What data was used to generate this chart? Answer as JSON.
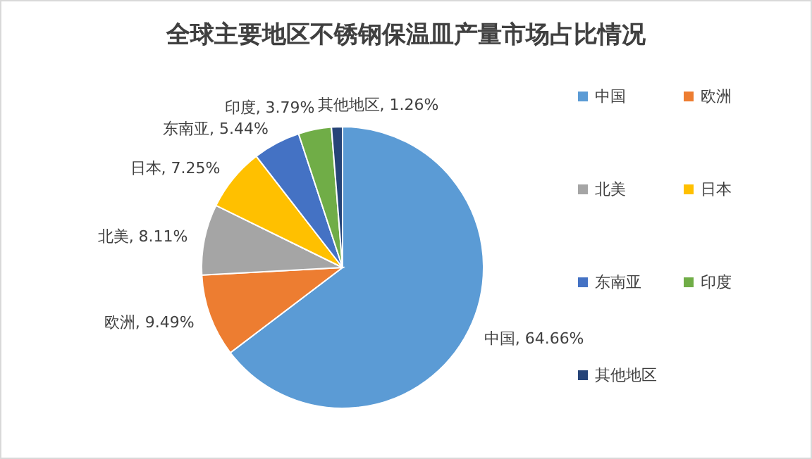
{
  "chart_data": {
    "type": "pie",
    "title": "全球主要地区不锈钢保温皿产量市场占比情况",
    "categories": [
      "中国",
      "欧洲",
      "北美",
      "日本",
      "东南亚",
      "印度",
      "其他地区"
    ],
    "values": [
      64.66,
      9.49,
      8.11,
      7.25,
      5.44,
      3.79,
      1.26
    ],
    "colors": [
      "#5b9bd5",
      "#ed7d31",
      "#a5a5a5",
      "#ffc000",
      "#4472c4",
      "#70ad47",
      "#264478"
    ],
    "value_labels": [
      "中国, 64.66%",
      "欧洲, 9.49%",
      "北美, 8.11%",
      "日本, 7.25%",
      "东南亚, 5.44%",
      "印度, 3.79%",
      "其他地区, 1.26%"
    ],
    "legend": "right"
  }
}
